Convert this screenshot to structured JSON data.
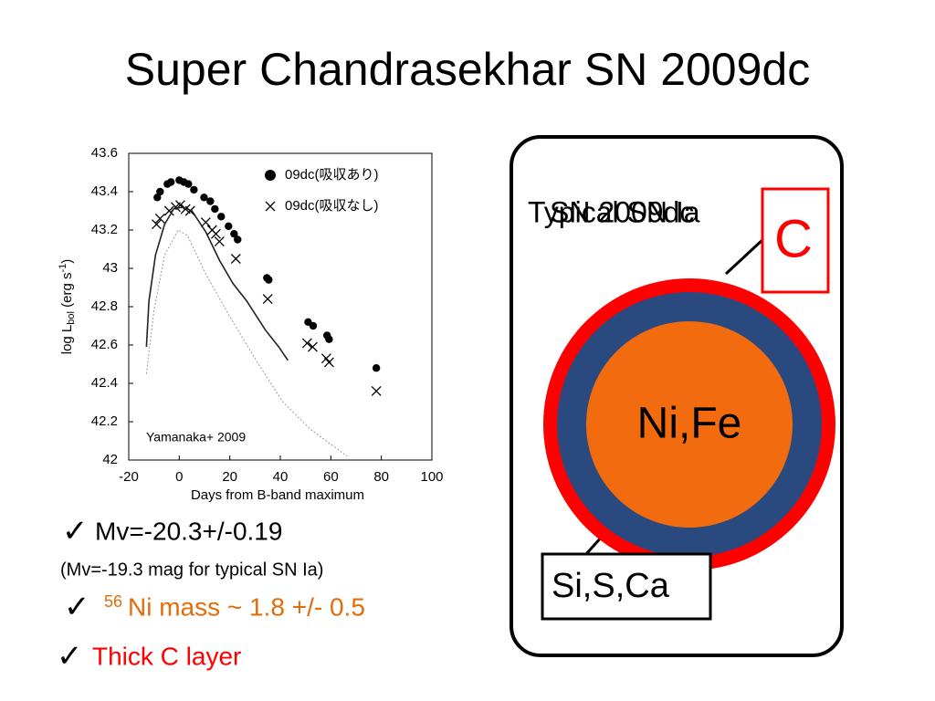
{
  "title": "Super Chandrasekhar SN 2009dc",
  "chart_data": {
    "type": "scatter",
    "xlabel": "Days from B-band maximum",
    "ylabel": {
      "main": "log L",
      "sub": "bol",
      "unit": " (erg s",
      "sup": "-1",
      "close": ")"
    },
    "annotation": "Yamanaka+ 2009",
    "xlim": [
      -20,
      100
    ],
    "xticks": [
      -20,
      0,
      20,
      40,
      60,
      80,
      100
    ],
    "ylim": [
      42,
      43.6
    ],
    "yticks": [
      42,
      42.2,
      42.4,
      42.6,
      42.8,
      43,
      43.2,
      43.4,
      43.6
    ],
    "series": [
      {
        "name": "09dc(吸収あり)",
        "color": "#000000",
        "marker": "circle",
        "linestyle": "none",
        "x": [
          -8.7,
          -7.6,
          -4.7,
          -3.3,
          0,
          1.8,
          3.6,
          5.8,
          9.8,
          12.3,
          14.1,
          16.6,
          19.5,
          21.7,
          23.1,
          34.7,
          35.4,
          51,
          53,
          58.5,
          59.3,
          78
        ],
        "values": [
          43.37,
          43.4,
          43.44,
          43.45,
          43.46,
          43.45,
          43.44,
          43.41,
          43.37,
          43.35,
          43.31,
          43.27,
          43.22,
          43.18,
          43.15,
          42.95,
          42.94,
          42.72,
          42.7,
          42.65,
          42.63,
          42.48
        ]
      },
      {
        "name": "09dc(吸収なし)",
        "color": "#000000",
        "marker": "x",
        "linestyle": "none",
        "x": [
          -9,
          -7.6,
          -4,
          -1.4,
          0.4,
          2.5,
          4.3,
          10.5,
          13,
          14.5,
          15.9,
          22.4,
          35,
          50.6,
          52.8,
          58.2,
          59.3,
          78
        ],
        "values": [
          43.23,
          43.26,
          43.3,
          43.32,
          43.33,
          43.31,
          43.3,
          43.24,
          43.2,
          43.18,
          43.14,
          43.05,
          42.84,
          42.61,
          42.59,
          42.53,
          42.51,
          42.36
        ]
      },
      {
        "color": "#222222",
        "marker": "none",
        "linestyle": "solid",
        "x": [
          -13,
          -12,
          -9.4,
          -5.8,
          -2.2,
          1.4,
          5,
          10.5,
          16,
          21.3,
          26.7,
          34,
          39.4,
          43
        ],
        "values": [
          42.59,
          42.83,
          43.07,
          43.23,
          43.31,
          43.32,
          43.3,
          43.19,
          43.04,
          42.92,
          42.83,
          42.68,
          42.59,
          42.52
        ]
      },
      {
        "color": "#999999",
        "marker": "none",
        "linestyle": "dashed",
        "x": [
          -13,
          -10,
          -5.8,
          -0.4,
          3.3,
          10.5,
          19.5,
          30.4,
          41.2,
          52,
          66.4
        ],
        "values": [
          42.45,
          42.78,
          43.07,
          43.2,
          43.17,
          42.97,
          42.76,
          42.52,
          42.3,
          42.16,
          42.02
        ]
      }
    ]
  },
  "bullets": [
    {
      "mark": "✓",
      "text": "Mv=-20.3+/-0.19"
    },
    {
      "text": "(Mv=-19.3 mag for typical SN Ia)"
    },
    {
      "mark": "✓",
      "sup": "56",
      "text": "Ni mass ~ 1.8 +/- 0.5"
    },
    {
      "mark": "✓",
      "text": "Thick C layer"
    }
  ],
  "diagram": {
    "labels": [
      "Typical SN Ia",
      "SN 2009dc"
    ],
    "outer": "C",
    "core": "Ni,Fe",
    "middle": "Si,S,Ca"
  }
}
